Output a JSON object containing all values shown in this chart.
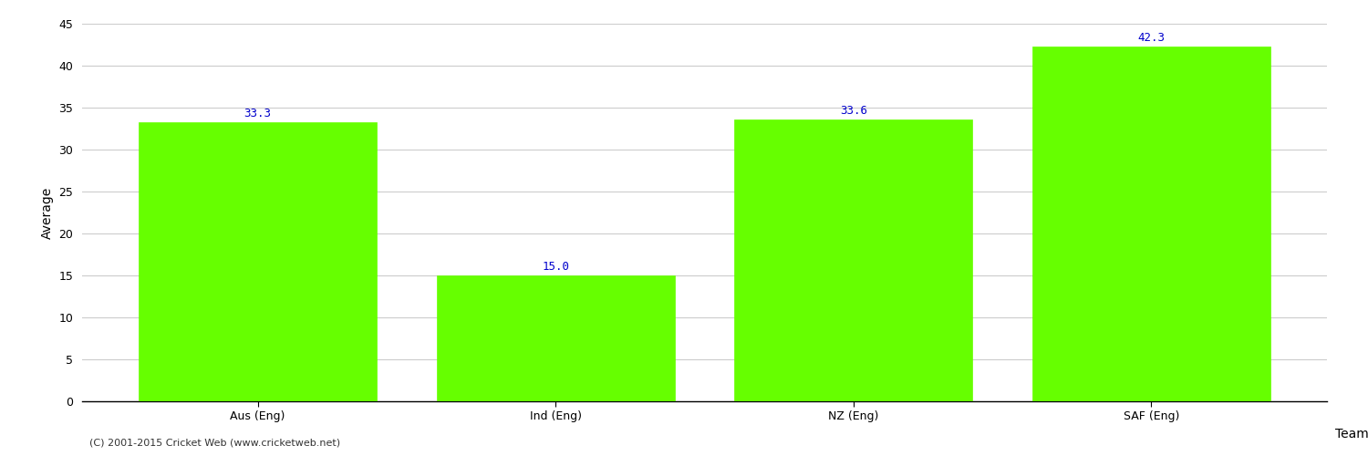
{
  "categories": [
    "Aus (Eng)",
    "Ind (Eng)",
    "NZ (Eng)",
    "SAF (Eng)"
  ],
  "values": [
    33.3,
    15.0,
    33.6,
    42.3
  ],
  "bar_color": "#66ff00",
  "bar_edge_color": "#66ff00",
  "xlabel": "Team",
  "ylabel": "Average",
  "ylim": [
    0,
    45
  ],
  "yticks": [
    0,
    5,
    10,
    15,
    20,
    25,
    30,
    35,
    40,
    45
  ],
  "label_color": "#0000cc",
  "label_fontsize": 9,
  "grid_color": "#cccccc",
  "axis_label_fontsize": 10,
  "tick_fontsize": 9,
  "footer_text": "(C) 2001-2015 Cricket Web (www.cricketweb.net)",
  "footer_fontsize": 8,
  "background_color": "#ffffff"
}
